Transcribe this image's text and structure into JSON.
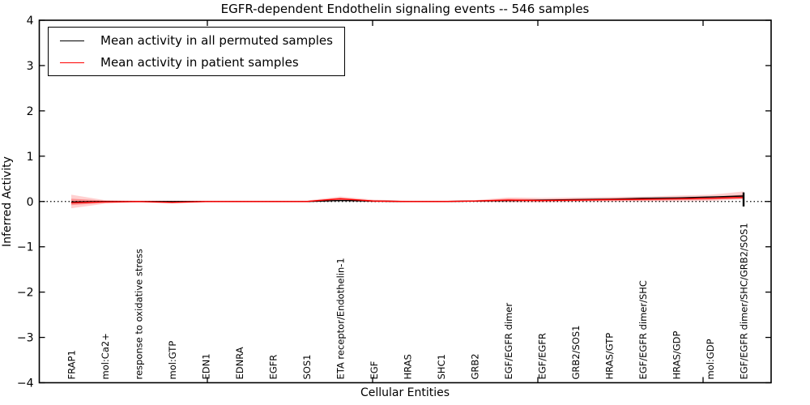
{
  "chart_data": {
    "type": "line",
    "title": "EGFR-dependent Endothelin signaling events -- 546 samples",
    "xlabel": "Cellular Entities",
    "ylabel": "Inferred Activity",
    "ylim": [
      -4,
      4
    ],
    "yticks": [
      4,
      3,
      2,
      1,
      0,
      -1,
      -2,
      -3,
      -4
    ],
    "grid": false,
    "zero_line_style": "dotted",
    "legend_position": "upper left",
    "categories": [
      "FRAP1",
      "mol:Ca2+",
      "response to oxidative stress",
      "mol:GTP",
      "EDN1",
      "EDNRA",
      "EGFR",
      "SOS1",
      "ETA receptor/Endothelin-1",
      "EGF",
      "HRAS",
      "SHC1",
      "GRB2",
      "EGF/EGFR dimer",
      "EGF/EGFR",
      "GRB2/SOS1",
      "HRAS/GTP",
      "EGF/EGFR dimer/SHC",
      "HRAS/GDP",
      "mol:GDP",
      "EGF/EGFR dimer/SHC/GRB2/SOS1"
    ],
    "series": [
      {
        "name": "Mean activity in all permuted samples",
        "color": "#000000",
        "values": [
          -0.01,
          0.0,
          0.0,
          0.0,
          0.0,
          0.0,
          0.0,
          0.0,
          0.02,
          0.01,
          0.0,
          0.0,
          0.01,
          0.02,
          0.03,
          0.04,
          0.05,
          0.07,
          0.08,
          0.1,
          0.12
        ]
      },
      {
        "name": "Mean activity in patient samples",
        "color": "#ff0000",
        "values": [
          -0.03,
          -0.01,
          0.0,
          -0.02,
          0.0,
          0.0,
          0.0,
          0.0,
          0.06,
          0.01,
          0.0,
          0.0,
          0.01,
          0.03,
          0.02,
          0.03,
          0.04,
          0.05,
          0.06,
          0.07,
          0.09
        ]
      }
    ],
    "patient_band_outer": {
      "upper": [
        0.15,
        0.03,
        0.02,
        0.02,
        0.02,
        0.02,
        0.02,
        0.02,
        0.11,
        0.04,
        0.02,
        0.02,
        0.03,
        0.09,
        0.08,
        0.09,
        0.1,
        0.11,
        0.13,
        0.15,
        0.22
      ],
      "lower": [
        -0.15,
        -0.05,
        -0.02,
        -0.04,
        -0.02,
        -0.02,
        -0.02,
        -0.02,
        0.01,
        -0.02,
        -0.02,
        -0.02,
        -0.01,
        -0.02,
        -0.02,
        -0.01,
        -0.01,
        0.0,
        0.0,
        0.01,
        0.05
      ]
    },
    "patient_band_inner": {
      "upper": [
        0.06,
        0.02,
        0.01,
        0.01,
        0.01,
        0.01,
        0.01,
        0.01,
        0.08,
        0.02,
        0.01,
        0.01,
        0.02,
        0.06,
        0.05,
        0.06,
        0.07,
        0.08,
        0.09,
        0.1,
        0.15
      ],
      "lower": [
        -0.08,
        -0.03,
        -0.01,
        -0.02,
        -0.01,
        -0.01,
        -0.01,
        -0.01,
        0.03,
        -0.01,
        -0.01,
        -0.01,
        0.0,
        0.0,
        0.0,
        0.01,
        0.02,
        0.02,
        0.03,
        0.04,
        0.06
      ]
    },
    "errorbar_last": {
      "index": 20,
      "low": -0.11,
      "high": 0.2
    },
    "legend": [
      {
        "label": "Mean activity in all permuted samples",
        "color": "#000000"
      },
      {
        "label": "Mean activity in patient samples",
        "color": "#ff0000"
      }
    ],
    "colors": {
      "frame": "#000000",
      "band_fill": "#ff0000",
      "zero_line": "#000000"
    }
  }
}
